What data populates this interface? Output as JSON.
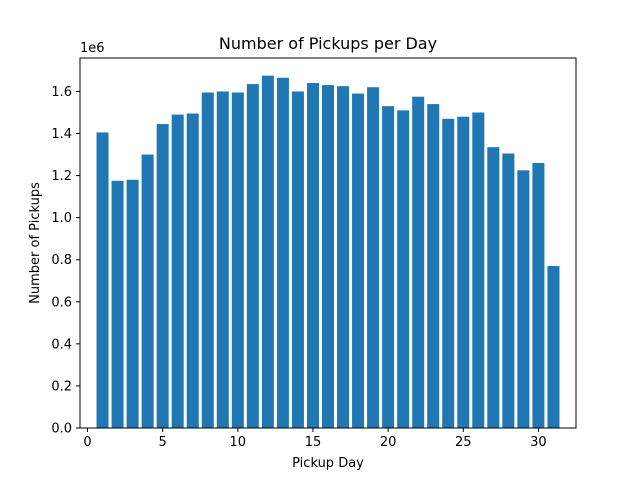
{
  "chart_data": {
    "type": "bar",
    "title": "Number of Pickups per Day",
    "xlabel": "Pickup Day",
    "ylabel": "Number of Pickups",
    "y_offset_label": "1e6",
    "y_scale": 1000000,
    "x": [
      1,
      2,
      3,
      4,
      5,
      6,
      7,
      8,
      9,
      10,
      11,
      12,
      13,
      14,
      15,
      16,
      17,
      18,
      19,
      20,
      21,
      22,
      23,
      24,
      25,
      26,
      27,
      28,
      29,
      30,
      31
    ],
    "values": [
      1405000,
      1175000,
      1180000,
      1300000,
      1445000,
      1490000,
      1495000,
      1595000,
      1600000,
      1595000,
      1635000,
      1675000,
      1665000,
      1600000,
      1640000,
      1630000,
      1625000,
      1590000,
      1620000,
      1530000,
      1510000,
      1575000,
      1540000,
      1470000,
      1480000,
      1500000,
      1335000,
      1305000,
      1225000,
      1260000,
      770000
    ],
    "xlim": [
      -0.5,
      32.5
    ],
    "ylim": [
      0,
      1759000
    ],
    "xticks": [
      0,
      5,
      10,
      15,
      20,
      25,
      30
    ],
    "xtick_labels": [
      "0",
      "5",
      "10",
      "15",
      "20",
      "25",
      "30"
    ],
    "yticks": [
      0,
      200000,
      400000,
      600000,
      800000,
      1000000,
      1200000,
      1400000,
      1600000
    ],
    "ytick_labels": [
      "0.0",
      "0.2",
      "0.4",
      "0.6",
      "0.8",
      "1.0",
      "1.2",
      "1.4",
      "1.6"
    ],
    "bar_color": "#1f77b4",
    "grid": false,
    "legend": false
  }
}
